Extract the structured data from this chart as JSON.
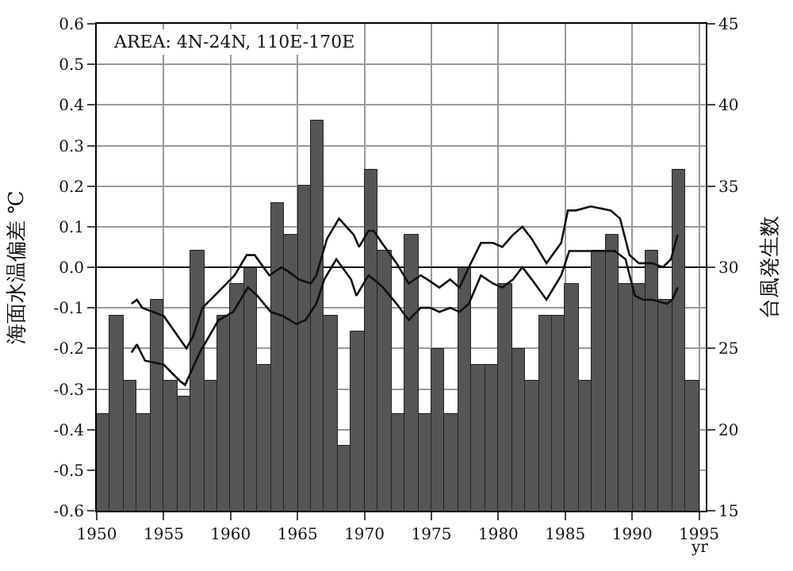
{
  "chart_data": {
    "type": "bar",
    "xlabel": "yr",
    "ylabel": "海面水温偏差 ℃",
    "y2label": "台風発生数",
    "annotations": [
      "AREA: 4N-24N, 110E-170E"
    ],
    "xlim": [
      1950,
      1995.5
    ],
    "xticks": [
      1950,
      1955,
      1960,
      1965,
      1970,
      1975,
      1980,
      1985,
      1990,
      1995
    ],
    "ylim": [
      -0.6,
      0.6
    ],
    "yticks": [
      -0.6,
      -0.5,
      -0.4,
      -0.3,
      -0.2,
      -0.1,
      {
        "value": 0,
        "label": "0.0"
      },
      0.1,
      0.2,
      0.3,
      0.4,
      0.5,
      0.6
    ],
    "y2lim": [
      15,
      45
    ],
    "y2ticks": [
      15,
      20,
      25,
      30,
      35,
      40,
      45
    ],
    "grid": true,
    "series": [
      {
        "axis": "y2",
        "color": "#555555",
        "x": [
          1950.5,
          1951.5,
          1952.5,
          1953.5,
          1954.5,
          1955.5,
          1956.5,
          1957.5,
          1958.5,
          1959.5,
          1960.5,
          1961.5,
          1962.5,
          1963.5,
          1964.5,
          1965.5,
          1966.5,
          1967.5,
          1968.5,
          1969.5,
          1970.5,
          1971.5,
          1972.5,
          1973.5,
          1974.5,
          1975.5,
          1976.5,
          1977.5,
          1978.5,
          1979.5,
          1980.5,
          1981.5,
          1982.5,
          1983.5,
          1984.5,
          1985.5,
          1986.5,
          1987.5,
          1988.5,
          1989.5,
          1990.5,
          1991.5,
          1992.5,
          1993.5,
          1994.5
        ],
        "values": [
          21,
          27,
          23,
          21,
          28,
          23,
          22,
          31,
          23,
          27,
          29,
          30,
          24,
          34,
          32,
          35,
          39,
          27,
          19,
          26,
          36,
          31,
          21,
          32,
          21,
          25,
          21,
          30,
          24,
          24,
          29,
          25,
          23,
          27,
          27,
          29,
          23,
          31,
          32,
          29,
          29,
          31,
          28,
          36,
          23
        ]
      },
      {
        "type": "line",
        "axis": "y",
        "color": "#111111",
        "x": [
          1952.6,
          1953.0,
          1953.4,
          1955.0,
          1956.7,
          1957.2,
          1957.9,
          1959.4,
          1960.3,
          1961.2,
          1961.8,
          1962.9,
          1963.8,
          1964.3,
          1965.1,
          1966.0,
          1966.4,
          1967.2,
          1968.1,
          1969.2,
          1969.6,
          1970.3,
          1970.7,
          1971.3,
          1972.4,
          1973.3,
          1974.2,
          1974.7,
          1975.6,
          1976.4,
          1977.1,
          1977.8,
          1978.7,
          1979.6,
          1980.3,
          1981.1,
          1981.8,
          1982.5,
          1983.6,
          1984.7,
          1985.2,
          1985.8,
          1986.9,
          1988.4,
          1989.1,
          1989.8,
          1990.5,
          1991.5,
          1992.3,
          1992.9,
          1993.4
        ],
        "values": [
          -0.09,
          -0.08,
          -0.1,
          -0.12,
          -0.2,
          -0.17,
          -0.1,
          -0.05,
          -0.02,
          0.03,
          0.03,
          -0.02,
          0.0,
          -0.01,
          -0.03,
          -0.04,
          -0.02,
          0.07,
          0.12,
          0.08,
          0.05,
          0.09,
          0.09,
          0.06,
          0.01,
          -0.04,
          -0.02,
          -0.03,
          -0.05,
          -0.03,
          -0.05,
          0.0,
          0.06,
          0.06,
          0.05,
          0.08,
          0.1,
          0.07,
          0.01,
          0.06,
          0.14,
          0.14,
          0.15,
          0.14,
          0.12,
          0.03,
          0.01,
          0.01,
          0.0,
          0.02,
          0.08
        ]
      },
      {
        "type": "line",
        "axis": "y",
        "color": "#111111",
        "x": [
          1952.6,
          1953.0,
          1953.6,
          1955.0,
          1956.2,
          1956.6,
          1957.7,
          1959.1,
          1960.2,
          1961.3,
          1962.0,
          1963.0,
          1963.9,
          1964.9,
          1965.6,
          1966.4,
          1967.0,
          1967.9,
          1969.0,
          1969.4,
          1970.3,
          1970.7,
          1971.4,
          1972.4,
          1973.3,
          1974.2,
          1974.9,
          1975.6,
          1976.4,
          1977.1,
          1977.8,
          1978.7,
          1979.6,
          1980.3,
          1981.1,
          1981.8,
          1982.5,
          1983.6,
          1984.7,
          1985.3,
          1986.2,
          1987.6,
          1988.7,
          1989.5,
          1990.2,
          1990.8,
          1991.5,
          1992.6,
          1993.0,
          1993.4
        ],
        "values": [
          -0.21,
          -0.19,
          -0.23,
          -0.24,
          -0.28,
          -0.29,
          -0.21,
          -0.13,
          -0.11,
          -0.05,
          -0.07,
          -0.11,
          -0.12,
          -0.14,
          -0.13,
          -0.09,
          -0.03,
          0.02,
          -0.03,
          -0.07,
          -0.02,
          -0.03,
          -0.05,
          -0.09,
          -0.13,
          -0.1,
          -0.1,
          -0.11,
          -0.1,
          -0.11,
          -0.09,
          -0.02,
          -0.04,
          -0.05,
          -0.03,
          0.0,
          -0.03,
          -0.08,
          -0.02,
          0.04,
          0.04,
          0.04,
          0.04,
          0.02,
          -0.07,
          -0.08,
          -0.08,
          -0.09,
          -0.08,
          -0.05
        ]
      }
    ]
  }
}
